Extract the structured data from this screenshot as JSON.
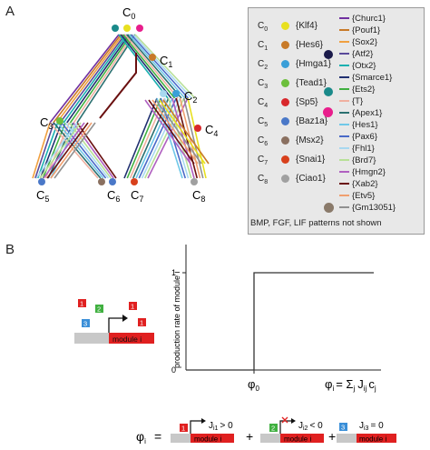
{
  "panels": {
    "a": "A",
    "b": "B"
  },
  "tree_labels": {
    "c0": "C",
    "c0_sub": "0",
    "c1": "C",
    "c1_sub": "1",
    "c2": "C",
    "c2_sub": "2",
    "c3": "C",
    "c3_sub": "3",
    "c4": "C",
    "c4_sub": "4",
    "c5": "C",
    "c5_sub": "5",
    "c6": "C",
    "c6_sub": "6",
    "c7": "C",
    "c7_sub": "7",
    "c8": "C",
    "c8_sub": "8"
  },
  "legend_left": [
    {
      "sym": "C",
      "sub": "0",
      "gene": "{Klf4}",
      "color": "#e8e020"
    },
    {
      "sym": "C",
      "sub": "1",
      "gene": "{Hes6}",
      "color": "#c87a28"
    },
    {
      "sym": "C",
      "sub": "2",
      "gene": "{Hmga1}",
      "color": "#3a9fd8"
    },
    {
      "sym": "C",
      "sub": "3",
      "gene": "{Tead1}",
      "color": "#6cbf3c"
    },
    {
      "sym": "C",
      "sub": "4",
      "gene": "{Sp5}",
      "color": "#d8282c"
    },
    {
      "sym": "C",
      "sub": "5",
      "gene": "{Baz1a}",
      "color": "#4a78c8"
    },
    {
      "sym": "C",
      "sub": "6",
      "gene": "{Msx2}",
      "color": "#8a7060"
    },
    {
      "sym": "C",
      "sub": "7",
      "gene": "{Snai1}",
      "color": "#d8401c"
    },
    {
      "sym": "C",
      "sub": "8",
      "gene": "{Ciao1}",
      "color": "#a0a0a0"
    }
  ],
  "legend_right": [
    {
      "gene": "{Churc1}",
      "color": "#7030a0"
    },
    {
      "gene": "{Pouf1}",
      "color": "#c87a28"
    },
    {
      "gene": "{Sox2}",
      "color": "#f0a040"
    },
    {
      "gene": "{Atf2}",
      "color": "#5a4a9a"
    },
    {
      "gene": "{Otx2}",
      "color": "#1ab0b0"
    },
    {
      "gene": "{Smarce1}",
      "color": "#203070"
    },
    {
      "gene": "{Ets2}",
      "color": "#40b040"
    },
    {
      "gene": "{T}",
      "color": "#f0b0a0"
    },
    {
      "gene": "{Apex1}",
      "color": "#2a7070"
    },
    {
      "gene": "{Hes1}",
      "color": "#70c8e8"
    },
    {
      "gene": "{Pax6}",
      "color": "#4a6ac8"
    },
    {
      "gene": "{Fhl1}",
      "color": "#a8d8f0"
    },
    {
      "gene": "{Brd7}",
      "color": "#b8e098"
    },
    {
      "gene": "{Hmgn2}",
      "color": "#b060c0"
    },
    {
      "gene": "{Xab2}",
      "color": "#6a1010"
    },
    {
      "gene": "{Etv5}",
      "color": "#f0a070"
    },
    {
      "gene": "{Gm13051}",
      "color": "#909090"
    }
  ],
  "legend_note": "BMP, FGF, LIF patterns not shown",
  "panel_b": {
    "ylabel": "production rate of module i",
    "ytick_top": "1",
    "ytick_bottom": "0",
    "phi0": "φ",
    "phi0_sub": "0",
    "xlabel": "φ",
    "xlabel_i": "i",
    "xlabel_rest": "= Σ",
    "xlabel_j": "j",
    "xlabel_J": "J",
    "xlabel_ij": "ij",
    "xlabel_c": "c",
    "xlabel_cj": "j",
    "promoter_label": "module i",
    "site_labels": [
      "1",
      "2",
      "1",
      "3",
      "1"
    ],
    "eq_phi": "φ",
    "eq_phi_sub": "i",
    "eq_equals": "=",
    "eq_plus1": "+",
    "eq_plus2": "+",
    "terms": [
      {
        "site": "1",
        "cond": "J",
        "sub": "i1",
        "rel": "> 0",
        "module": "module i"
      },
      {
        "site": "2",
        "cond": "J",
        "sub": "i2",
        "rel": "< 0",
        "module": "module i"
      },
      {
        "site": "3",
        "cond": "J",
        "sub": "i3",
        "rel": "= 0",
        "module": "module i"
      }
    ]
  }
}
